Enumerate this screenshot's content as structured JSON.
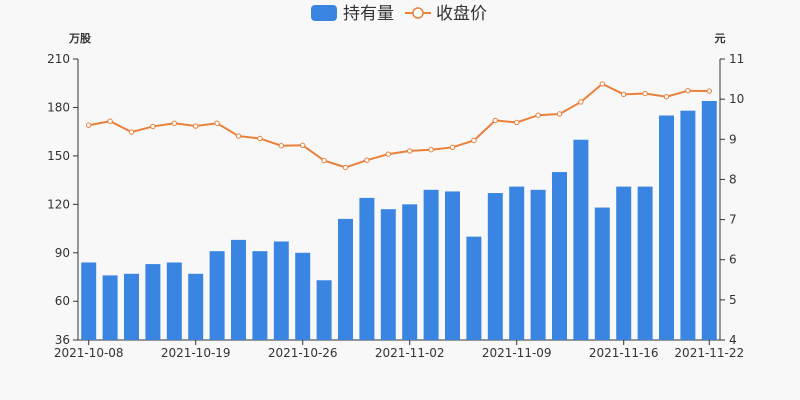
{
  "chart_data": {
    "type": "bar",
    "legend": {
      "placement": "top-center",
      "bar_label": "持有量",
      "line_label": "收盘价"
    },
    "y_left": {
      "unit": "万股",
      "min": 36,
      "max": 210,
      "ticks": [
        36,
        60,
        90,
        120,
        150,
        180,
        210
      ]
    },
    "y_right": {
      "unit": "元",
      "min": 4,
      "max": 11,
      "ticks": [
        4,
        5,
        6,
        7,
        8,
        9,
        10,
        11
      ]
    },
    "x_tick_labels": [
      {
        "index": 0,
        "label": "2021-10-08"
      },
      {
        "index": 5,
        "label": "2021-10-19"
      },
      {
        "index": 10,
        "label": "2021-10-26"
      },
      {
        "index": 15,
        "label": "2021-11-02"
      },
      {
        "index": 20,
        "label": "2021-11-09"
      },
      {
        "index": 25,
        "label": "2021-11-16"
      },
      {
        "index": 29,
        "label": "2021-11-22"
      }
    ],
    "series": [
      {
        "name": "持有量",
        "type": "bar",
        "color": "#3a85e2",
        "values": [
          84,
          76,
          77,
          83,
          84,
          77,
          91,
          98,
          91,
          97,
          90,
          73,
          111,
          124,
          117,
          120,
          129,
          128,
          100,
          127,
          131,
          129,
          140,
          160,
          118,
          131,
          131,
          175,
          178,
          184
        ]
      },
      {
        "name": "收盘价",
        "type": "line",
        "color": "#e9813b",
        "values": [
          9.35,
          9.45,
          9.18,
          9.32,
          9.4,
          9.33,
          9.4,
          9.08,
          9.02,
          8.84,
          8.85,
          8.47,
          8.3,
          8.48,
          8.63,
          8.71,
          8.74,
          8.8,
          8.97,
          9.47,
          9.42,
          9.6,
          9.63,
          9.93,
          10.38,
          10.12,
          10.14,
          10.06,
          10.21,
          10.2
        ]
      }
    ]
  }
}
